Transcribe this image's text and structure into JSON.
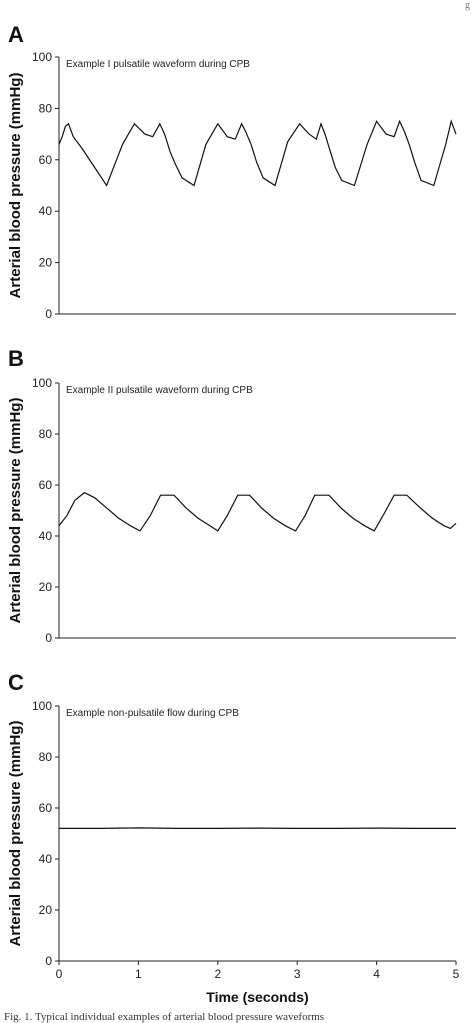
{
  "header_fragment": "g",
  "caption": "Fig. 1. Typical individual examples of arterial blood pressure waveforms",
  "chart_data": [
    {
      "type": "line",
      "panel": "A",
      "title": "Example I pulsatile waveform during CPB",
      "ylabel": "Arterial blood pressure (mmHg)",
      "ylim": [
        0,
        100
      ],
      "yticks": [
        "0",
        "20",
        "40",
        "60",
        "80",
        "100"
      ],
      "series": [
        {
          "x": [
            0,
            0.04,
            0.08,
            0.12,
            0.18,
            0.3,
            0.45,
            0.6,
            0.8,
            0.95,
            1.08,
            1.18,
            1.27,
            1.33,
            1.4,
            1.47,
            1.55,
            1.7,
            1.85,
            2.0,
            2.12,
            2.22,
            2.3,
            2.35,
            2.42,
            2.49,
            2.57,
            2.72,
            2.88,
            3.03,
            3.15,
            3.24,
            3.3,
            3.35,
            3.42,
            3.48,
            3.56,
            3.72,
            3.88,
            4.0,
            4.12,
            4.22,
            4.29,
            4.35,
            4.41,
            4.48,
            4.56,
            4.72,
            4.87,
            4.94,
            5.0
          ],
          "y": [
            66,
            69,
            73,
            74,
            69,
            64,
            57,
            50,
            66,
            74,
            70,
            69,
            74,
            70,
            63,
            58,
            53,
            50,
            66,
            74,
            69,
            68,
            74,
            71,
            66,
            59,
            53,
            50,
            67,
            74,
            70,
            68,
            74,
            70,
            63,
            57,
            52,
            50,
            66,
            75,
            70,
            69,
            75,
            71,
            66,
            59,
            52,
            50,
            66,
            75,
            70
          ]
        }
      ]
    },
    {
      "type": "line",
      "panel": "B",
      "title": "Example II pulsatile waveform during CPB",
      "ylabel": "Arterial blood pressure (mmHg)",
      "ylim": [
        0,
        100
      ],
      "yticks": [
        "0",
        "20",
        "40",
        "60",
        "80",
        "100"
      ],
      "series": [
        {
          "x": [
            0,
            0.1,
            0.2,
            0.32,
            0.45,
            0.6,
            0.75,
            0.9,
            1.02,
            1.15,
            1.28,
            1.45,
            1.6,
            1.75,
            1.9,
            2.0,
            2.12,
            2.25,
            2.4,
            2.55,
            2.7,
            2.85,
            2.98,
            3.1,
            3.22,
            3.4,
            3.55,
            3.7,
            3.85,
            3.97,
            4.1,
            4.22,
            4.38,
            4.55,
            4.7,
            4.85,
            4.93,
            5.0
          ],
          "y": [
            44,
            48,
            54,
            57,
            55,
            51,
            47,
            44,
            42,
            48,
            56,
            56,
            51,
            47,
            44,
            42,
            48,
            56,
            56,
            51,
            47,
            44,
            42,
            48,
            56,
            56,
            51,
            47,
            44,
            42,
            49,
            56,
            56,
            51,
            47,
            44,
            43,
            45
          ]
        }
      ]
    },
    {
      "type": "line",
      "panel": "C",
      "title": "Example non-pulsatile flow during CPB",
      "ylabel": "Arterial blood pressure (mmHg)",
      "xlabel": "Time (seconds)",
      "ylim": [
        0,
        100
      ],
      "xlim": [
        0,
        5
      ],
      "yticks": [
        "0",
        "20",
        "40",
        "60",
        "80",
        "100"
      ],
      "xticks": [
        "0",
        "1",
        "2",
        "3",
        "4",
        "5"
      ],
      "series": [
        {
          "x": [
            0,
            0.5,
            1.0,
            1.5,
            2.0,
            2.5,
            3.0,
            3.5,
            4.0,
            4.5,
            5.0
          ],
          "y": [
            52,
            52,
            52.2,
            52,
            52,
            52.1,
            52,
            52,
            52.1,
            52,
            52
          ]
        }
      ]
    }
  ]
}
